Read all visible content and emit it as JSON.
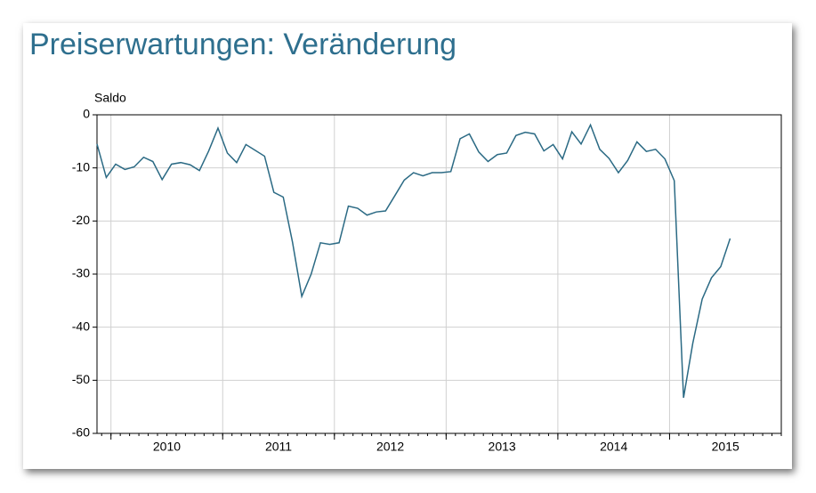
{
  "chart_data": {
    "type": "line",
    "title": "Preiserwartungen: Veränderung",
    "y_label": "Saldo",
    "x": [
      2009.875,
      2009.958,
      2010.042,
      2010.125,
      2010.208,
      2010.292,
      2010.375,
      2010.458,
      2010.542,
      2010.625,
      2010.708,
      2010.792,
      2010.875,
      2010.958,
      2011.042,
      2011.125,
      2011.208,
      2011.292,
      2011.375,
      2011.458,
      2011.542,
      2011.625,
      2011.708,
      2011.792,
      2011.875,
      2011.958,
      2012.042,
      2012.125,
      2012.208,
      2012.292,
      2012.375,
      2012.458,
      2012.542,
      2012.625,
      2012.708,
      2012.792,
      2012.875,
      2012.958,
      2013.042,
      2013.125,
      2013.208,
      2013.292,
      2013.375,
      2013.458,
      2013.542,
      2013.625,
      2013.708,
      2013.792,
      2013.875,
      2013.958,
      2014.042,
      2014.125,
      2014.208,
      2014.292,
      2014.375,
      2014.458,
      2014.542,
      2014.625,
      2014.708,
      2014.792,
      2014.875,
      2014.958,
      2015.042,
      2015.125,
      2015.208,
      2015.292,
      2015.375,
      2015.458,
      2015.542
    ],
    "series": [
      {
        "name": "Saldo",
        "color": "#2b6a84",
        "values": [
          -5.5,
          -11.8,
          -9.3,
          -10.3,
          -9.8,
          -8.0,
          -8.8,
          -12.2,
          -9.3,
          -9.0,
          -9.4,
          -10.5,
          -6.8,
          -2.5,
          -7.2,
          -9.0,
          -5.6,
          -6.7,
          -7.8,
          -14.6,
          -15.5,
          -24.0,
          -34.2,
          -30.0,
          -24.1,
          -24.4,
          -24.1,
          -17.2,
          -17.6,
          -18.9,
          -18.3,
          -18.1,
          -15.2,
          -12.3,
          -10.9,
          -11.5,
          -10.9,
          -10.9,
          -10.7,
          -4.5,
          -3.6,
          -7.0,
          -8.8,
          -7.5,
          -7.2,
          -3.9,
          -3.3,
          -3.6,
          -6.8,
          -5.6,
          -8.3,
          -3.2,
          -5.5,
          -1.9,
          -6.5,
          -8.2,
          -10.9,
          -8.6,
          -5.1,
          -6.9,
          -6.5,
          -8.3,
          -12.4,
          -53.3,
          -43.0,
          -34.7,
          -30.7,
          -28.6,
          -23.3
        ]
      }
    ],
    "xlim": [
      2009.875,
      2016
    ],
    "xticks": [
      {
        "value": 2010.5,
        "label": "2010"
      },
      {
        "value": 2011.5,
        "label": "2011"
      },
      {
        "value": 2012.5,
        "label": "2012"
      },
      {
        "value": 2013.5,
        "label": "2013"
      },
      {
        "value": 2014.5,
        "label": "2014"
      },
      {
        "value": 2015.5,
        "label": "2015"
      }
    ],
    "xgrid": [
      2010,
      2011,
      2012,
      2013,
      2014,
      2015
    ],
    "ylim": [
      -60,
      0
    ],
    "yticks": [
      0,
      -10,
      -20,
      -30,
      -40,
      -50,
      -60
    ],
    "grid": true
  }
}
